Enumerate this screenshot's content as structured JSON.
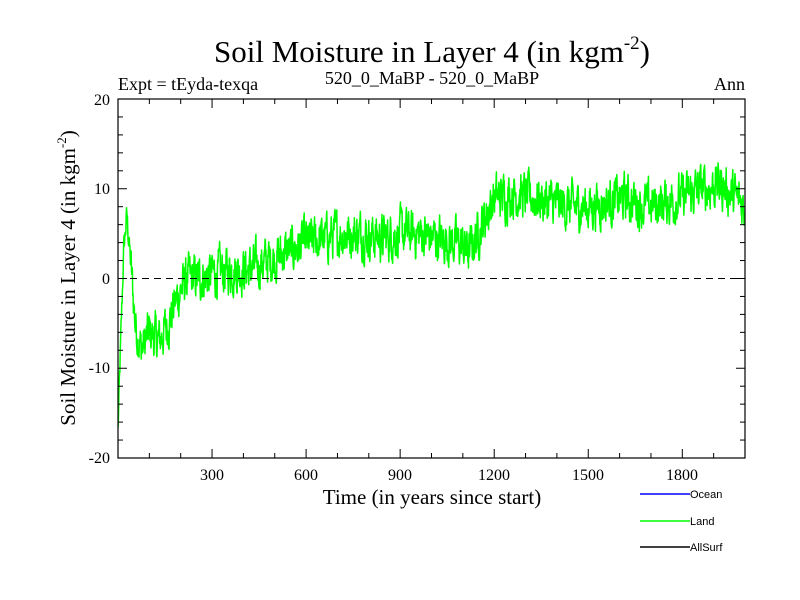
{
  "chart_data": {
    "type": "line",
    "title": "Soil Moisture in Layer 4 (in kgm",
    "title_sup": "-2",
    "title_close": ")",
    "subtitle_left": "Expt = tEyda-texqa",
    "subtitle_center": "520_0_MaBP - 520_0_MaBP",
    "subtitle_right": "Ann",
    "xlabel": "Time (in years since start)",
    "ylabel": "Soil Moisture in Layer 4 (in kgm",
    "ylabel_sup": "-2",
    "ylabel_close": ")",
    "xlim": [
      0,
      2000
    ],
    "ylim": [
      -20,
      20
    ],
    "xticks": [
      300,
      600,
      900,
      1200,
      1500,
      1800
    ],
    "xtick_labels": [
      "300",
      "600",
      "900",
      "1200",
      "1500",
      "1800"
    ],
    "yticks": [
      -20,
      -10,
      0,
      10,
      20
    ],
    "ytick_labels": [
      "-20",
      "-10",
      "0",
      "10",
      "20"
    ],
    "reference_line": 0,
    "trend_anchors": [
      [
        0,
        -17
      ],
      [
        8,
        -8
      ],
      [
        18,
        3
      ],
      [
        28,
        7
      ],
      [
        40,
        2
      ],
      [
        55,
        -5
      ],
      [
        75,
        -8
      ],
      [
        100,
        -6
      ],
      [
        130,
        -7
      ],
      [
        160,
        -5
      ],
      [
        190,
        -2
      ],
      [
        220,
        0
      ],
      [
        260,
        0
      ],
      [
        300,
        0.5
      ],
      [
        360,
        1
      ],
      [
        420,
        1
      ],
      [
        480,
        2
      ],
      [
        540,
        3
      ],
      [
        600,
        4
      ],
      [
        660,
        4.5
      ],
      [
        720,
        5
      ],
      [
        780,
        5
      ],
      [
        840,
        4.5
      ],
      [
        900,
        5
      ],
      [
        960,
        5
      ],
      [
        1020,
        4.5
      ],
      [
        1080,
        4
      ],
      [
        1120,
        3
      ],
      [
        1160,
        6
      ],
      [
        1200,
        9
      ],
      [
        1260,
        9.5
      ],
      [
        1320,
        9
      ],
      [
        1380,
        8.5
      ],
      [
        1440,
        8
      ],
      [
        1500,
        8
      ],
      [
        1560,
        8.5
      ],
      [
        1620,
        9
      ],
      [
        1680,
        8
      ],
      [
        1740,
        8.5
      ],
      [
        1800,
        9
      ],
      [
        1860,
        10
      ],
      [
        1920,
        10.5
      ],
      [
        1970,
        9
      ],
      [
        2000,
        8
      ]
    ],
    "noise_amplitude": 3.2,
    "series": [
      {
        "name": "Ocean",
        "color": "#0000ff",
        "visible": false
      },
      {
        "name": "Land",
        "color": "#00ff00",
        "visible": true
      },
      {
        "name": "AllSurf",
        "color": "#000000",
        "visible": false
      }
    ]
  }
}
